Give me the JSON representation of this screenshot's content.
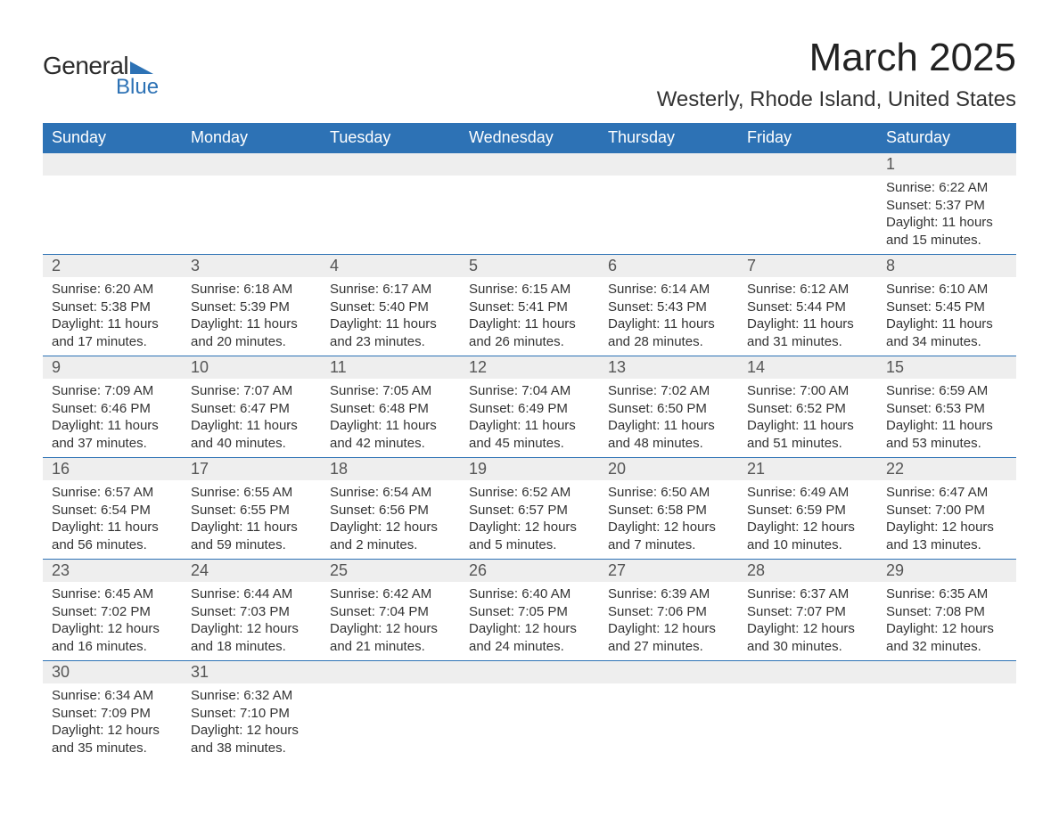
{
  "logo": {
    "text1": "General",
    "text2": "Blue",
    "icon_color": "#2d72b5"
  },
  "title": "March 2025",
  "location": "Westerly, Rhode Island, United States",
  "colors": {
    "header_bg": "#2d72b5",
    "header_text": "#ffffff",
    "daynum_bg": "#eeeeee",
    "row_border": "#2d72b5",
    "body_text": "#333333"
  },
  "weekdays": [
    "Sunday",
    "Monday",
    "Tuesday",
    "Wednesday",
    "Thursday",
    "Friday",
    "Saturday"
  ],
  "weeks": [
    [
      null,
      null,
      null,
      null,
      null,
      null,
      {
        "n": "1",
        "sunrise": "6:22 AM",
        "sunset": "5:37 PM",
        "dl": "11 hours and 15 minutes."
      }
    ],
    [
      {
        "n": "2",
        "sunrise": "6:20 AM",
        "sunset": "5:38 PM",
        "dl": "11 hours and 17 minutes."
      },
      {
        "n": "3",
        "sunrise": "6:18 AM",
        "sunset": "5:39 PM",
        "dl": "11 hours and 20 minutes."
      },
      {
        "n": "4",
        "sunrise": "6:17 AM",
        "sunset": "5:40 PM",
        "dl": "11 hours and 23 minutes."
      },
      {
        "n": "5",
        "sunrise": "6:15 AM",
        "sunset": "5:41 PM",
        "dl": "11 hours and 26 minutes."
      },
      {
        "n": "6",
        "sunrise": "6:14 AM",
        "sunset": "5:43 PM",
        "dl": "11 hours and 28 minutes."
      },
      {
        "n": "7",
        "sunrise": "6:12 AM",
        "sunset": "5:44 PM",
        "dl": "11 hours and 31 minutes."
      },
      {
        "n": "8",
        "sunrise": "6:10 AM",
        "sunset": "5:45 PM",
        "dl": "11 hours and 34 minutes."
      }
    ],
    [
      {
        "n": "9",
        "sunrise": "7:09 AM",
        "sunset": "6:46 PM",
        "dl": "11 hours and 37 minutes."
      },
      {
        "n": "10",
        "sunrise": "7:07 AM",
        "sunset": "6:47 PM",
        "dl": "11 hours and 40 minutes."
      },
      {
        "n": "11",
        "sunrise": "7:05 AM",
        "sunset": "6:48 PM",
        "dl": "11 hours and 42 minutes."
      },
      {
        "n": "12",
        "sunrise": "7:04 AM",
        "sunset": "6:49 PM",
        "dl": "11 hours and 45 minutes."
      },
      {
        "n": "13",
        "sunrise": "7:02 AM",
        "sunset": "6:50 PM",
        "dl": "11 hours and 48 minutes."
      },
      {
        "n": "14",
        "sunrise": "7:00 AM",
        "sunset": "6:52 PM",
        "dl": "11 hours and 51 minutes."
      },
      {
        "n": "15",
        "sunrise": "6:59 AM",
        "sunset": "6:53 PM",
        "dl": "11 hours and 53 minutes."
      }
    ],
    [
      {
        "n": "16",
        "sunrise": "6:57 AM",
        "sunset": "6:54 PM",
        "dl": "11 hours and 56 minutes."
      },
      {
        "n": "17",
        "sunrise": "6:55 AM",
        "sunset": "6:55 PM",
        "dl": "11 hours and 59 minutes."
      },
      {
        "n": "18",
        "sunrise": "6:54 AM",
        "sunset": "6:56 PM",
        "dl": "12 hours and 2 minutes."
      },
      {
        "n": "19",
        "sunrise": "6:52 AM",
        "sunset": "6:57 PM",
        "dl": "12 hours and 5 minutes."
      },
      {
        "n": "20",
        "sunrise": "6:50 AM",
        "sunset": "6:58 PM",
        "dl": "12 hours and 7 minutes."
      },
      {
        "n": "21",
        "sunrise": "6:49 AM",
        "sunset": "6:59 PM",
        "dl": "12 hours and 10 minutes."
      },
      {
        "n": "22",
        "sunrise": "6:47 AM",
        "sunset": "7:00 PM",
        "dl": "12 hours and 13 minutes."
      }
    ],
    [
      {
        "n": "23",
        "sunrise": "6:45 AM",
        "sunset": "7:02 PM",
        "dl": "12 hours and 16 minutes."
      },
      {
        "n": "24",
        "sunrise": "6:44 AM",
        "sunset": "7:03 PM",
        "dl": "12 hours and 18 minutes."
      },
      {
        "n": "25",
        "sunrise": "6:42 AM",
        "sunset": "7:04 PM",
        "dl": "12 hours and 21 minutes."
      },
      {
        "n": "26",
        "sunrise": "6:40 AM",
        "sunset": "7:05 PM",
        "dl": "12 hours and 24 minutes."
      },
      {
        "n": "27",
        "sunrise": "6:39 AM",
        "sunset": "7:06 PM",
        "dl": "12 hours and 27 minutes."
      },
      {
        "n": "28",
        "sunrise": "6:37 AM",
        "sunset": "7:07 PM",
        "dl": "12 hours and 30 minutes."
      },
      {
        "n": "29",
        "sunrise": "6:35 AM",
        "sunset": "7:08 PM",
        "dl": "12 hours and 32 minutes."
      }
    ],
    [
      {
        "n": "30",
        "sunrise": "6:34 AM",
        "sunset": "7:09 PM",
        "dl": "12 hours and 35 minutes."
      },
      {
        "n": "31",
        "sunrise": "6:32 AM",
        "sunset": "7:10 PM",
        "dl": "12 hours and 38 minutes."
      },
      null,
      null,
      null,
      null,
      null
    ]
  ],
  "labels": {
    "sunrise": "Sunrise: ",
    "sunset": "Sunset: ",
    "daylight": "Daylight: "
  }
}
